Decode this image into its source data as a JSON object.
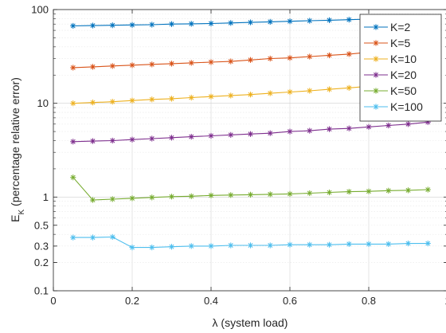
{
  "chart_data": {
    "type": "line",
    "title": "",
    "xlabel": "λ (system load)",
    "ylabel_main": "E",
    "ylabel_sub": "K",
    "ylabel_rest": " (percentage relative error)",
    "xlim": [
      0,
      1
    ],
    "ylim": [
      0.1,
      100
    ],
    "yscale": "log",
    "grid": true,
    "legend_position": "top-right",
    "xticks": [
      0,
      0.2,
      0.4,
      0.6,
      0.8,
      1
    ],
    "xtick_labels": [
      "0",
      "0.2",
      "0.4",
      "0.6",
      "0.8",
      "1"
    ],
    "yticks": [
      0.1,
      0.2,
      0.3,
      0.5,
      1,
      10,
      100
    ],
    "ytick_labels": [
      "0.1",
      "0.2",
      "0.3",
      "0.5",
      "1",
      "10",
      "100"
    ],
    "marker": "asterisk",
    "x": [
      0.05,
      0.1,
      0.15,
      0.2,
      0.25,
      0.3,
      0.35,
      0.4,
      0.45,
      0.5,
      0.55,
      0.6,
      0.65,
      0.7,
      0.75,
      0.8,
      0.85,
      0.9,
      0.95
    ],
    "series": [
      {
        "name": "K=2",
        "color": "#0072BD",
        "values": [
          67,
          67.5,
          68,
          68.5,
          69,
          70,
          70.5,
          71,
          72,
          73,
          74,
          75,
          76,
          77,
          78,
          79,
          80,
          81,
          82
        ]
      },
      {
        "name": "K=5",
        "color": "#D95319",
        "values": [
          24,
          24.5,
          25,
          25.5,
          26,
          26.5,
          27,
          27.5,
          28,
          29,
          30,
          30.5,
          31.5,
          32.5,
          33.5,
          35,
          36,
          37.5,
          39
        ]
      },
      {
        "name": "K=10",
        "color": "#EDB120",
        "values": [
          10,
          10.2,
          10.4,
          10.7,
          11,
          11.2,
          11.5,
          11.8,
          12.1,
          12.4,
          12.8,
          13.2,
          13.6,
          14.1,
          14.6,
          15.2,
          15.8,
          16.5,
          17.2
        ]
      },
      {
        "name": "K=20",
        "color": "#7E2F8E",
        "values": [
          3.9,
          3.95,
          4.0,
          4.1,
          4.2,
          4.3,
          4.4,
          4.5,
          4.6,
          4.7,
          4.8,
          5.0,
          5.1,
          5.3,
          5.4,
          5.6,
          5.8,
          6.0,
          6.3
        ]
      },
      {
        "name": "K=50",
        "color": "#77AC30",
        "values": [
          1.62,
          0.93,
          0.95,
          0.97,
          0.99,
          1.01,
          1.02,
          1.04,
          1.05,
          1.06,
          1.07,
          1.08,
          1.1,
          1.12,
          1.14,
          1.15,
          1.17,
          1.18,
          1.2
        ]
      },
      {
        "name": "K=100",
        "color": "#4DBEEE",
        "values": [
          0.37,
          0.37,
          0.375,
          0.29,
          0.29,
          0.295,
          0.3,
          0.3,
          0.305,
          0.305,
          0.305,
          0.31,
          0.31,
          0.31,
          0.315,
          0.315,
          0.315,
          0.32,
          0.32
        ]
      }
    ]
  }
}
